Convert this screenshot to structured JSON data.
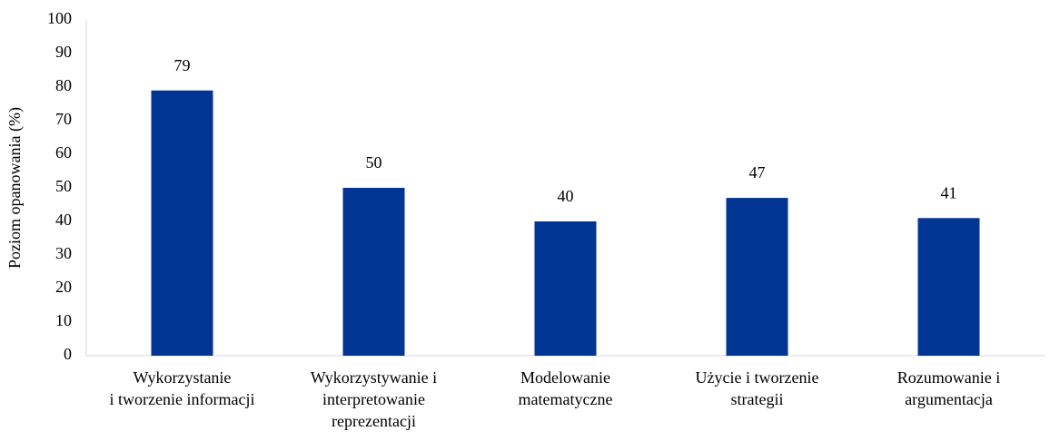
{
  "chart_data": {
    "type": "bar",
    "y_label": "Poziom opanowania (%)",
    "categories": [
      [
        "Wykorzystanie",
        "i tworzenie informacji"
      ],
      [
        "Wykorzystywanie i",
        "interpretowanie",
        "reprezentacji"
      ],
      [
        "Modelowanie",
        "matematyczne"
      ],
      [
        "Użycie i tworzenie",
        "strategii"
      ],
      [
        "Rozumowanie i",
        "argumentacja"
      ]
    ],
    "values": [
      79,
      50,
      40,
      47,
      41
    ],
    "color": "#003594",
    "ylim": [
      0,
      100
    ],
    "yticks": [
      0,
      10,
      20,
      30,
      40,
      50,
      60,
      70,
      80,
      90,
      100
    ],
    "grid": false
  }
}
